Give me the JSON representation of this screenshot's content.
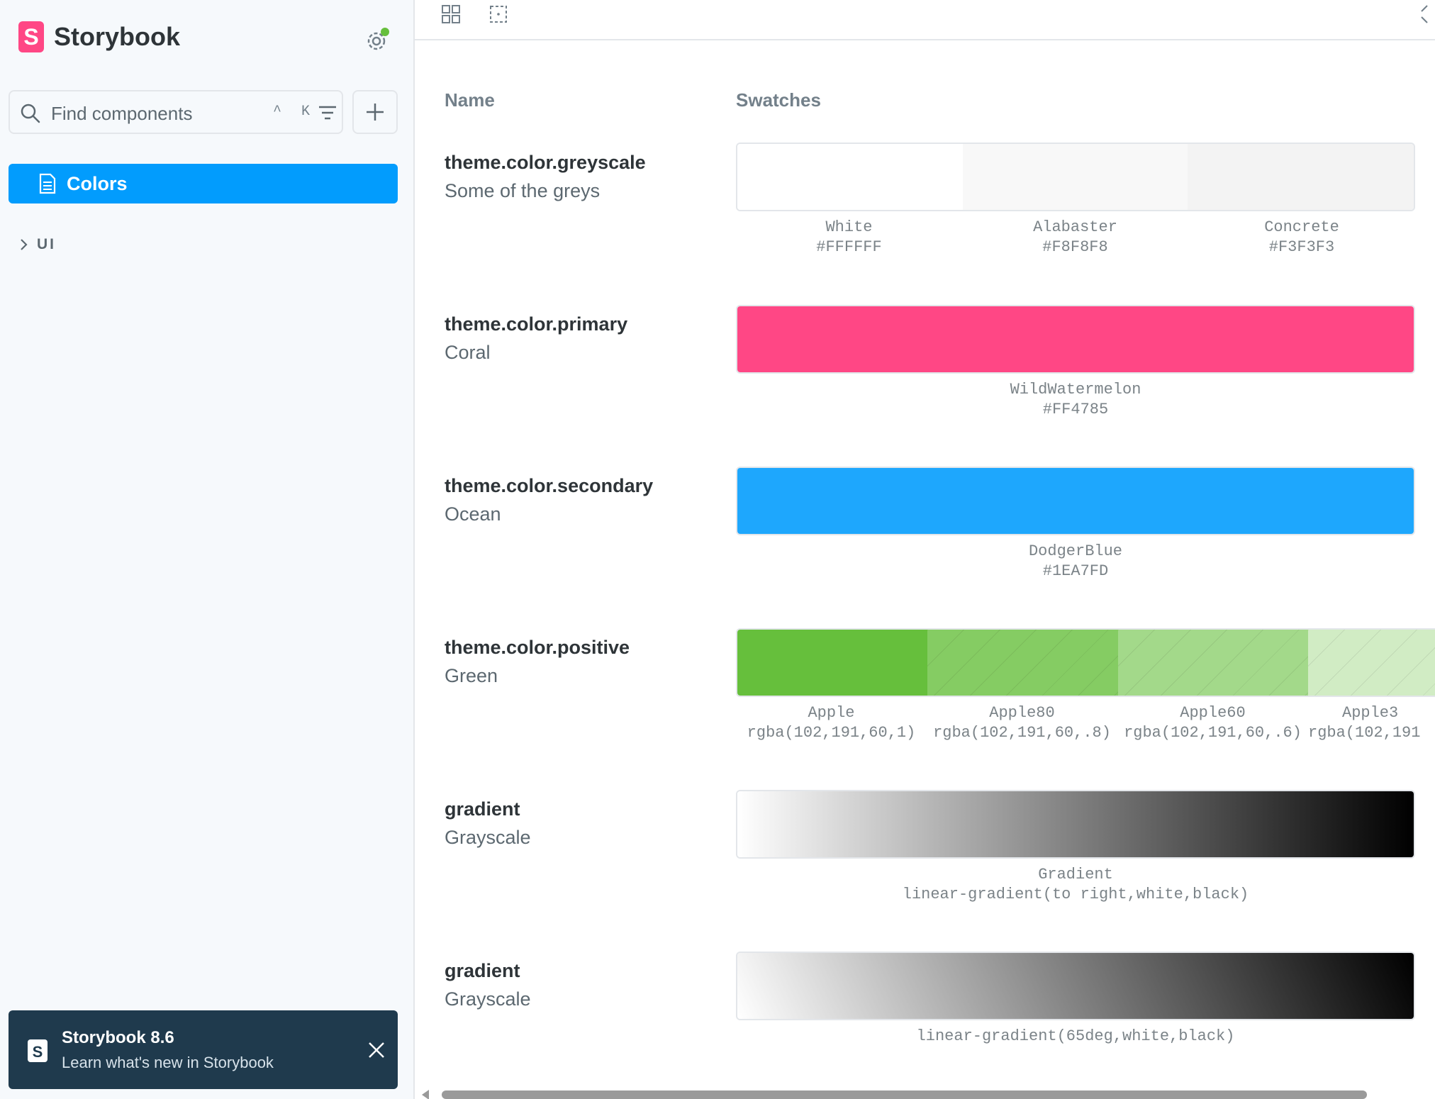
{
  "sidebar": {
    "brand_title": "Storybook",
    "search_placeholder": "Find components",
    "shortcut": "^ K",
    "selected_item": "Colors",
    "group_label": "UI",
    "notification": {
      "title": "Storybook 8.6",
      "subtitle": "Learn what's new in Storybook"
    }
  },
  "main": {
    "headers": {
      "name": "Name",
      "swatches": "Swatches"
    },
    "rows": [
      {
        "name": "theme.color.greyscale",
        "desc": "Some of the greys",
        "swatches": [
          {
            "label": "White",
            "value": "#FFFFFF",
            "color": "#FFFFFF"
          },
          {
            "label": "Alabaster",
            "value": "#F8F8F8",
            "color": "#F8F8F8"
          },
          {
            "label": "Concrete",
            "value": "#F3F3F3",
            "color": "#F3F3F3"
          }
        ]
      },
      {
        "name": "theme.color.primary",
        "desc": "Coral",
        "swatches": [
          {
            "label": "WildWatermelon",
            "value": "#FF4785",
            "color": "#FF4785"
          }
        ]
      },
      {
        "name": "theme.color.secondary",
        "desc": "Ocean",
        "swatches": [
          {
            "label": "DodgerBlue",
            "value": "#1EA7FD",
            "color": "#1EA7FD"
          }
        ]
      },
      {
        "name": "theme.color.positive",
        "desc": "Green",
        "swatches": [
          {
            "label": "Apple",
            "value": "rgba(102,191,60,1)",
            "color": "rgba(102,191,60,1)"
          },
          {
            "label": "Apple80",
            "value": "rgba(102,191,60,.8)",
            "color": "rgba(102,191,60,.8)"
          },
          {
            "label": "Apple60",
            "value": "rgba(102,191,60,.6)",
            "color": "rgba(102,191,60,.6)"
          },
          {
            "label": "Apple3",
            "value": "rgba(102,191",
            "color": "rgba(102,191,60,.3)"
          }
        ]
      },
      {
        "name": "gradient",
        "desc": "Grayscale",
        "swatches": [
          {
            "label": "Gradient",
            "value": "linear-gradient(to right,white,black)",
            "color": "linear-gradient(to right,white,black)"
          }
        ]
      },
      {
        "name": "gradient",
        "desc": "Grayscale",
        "swatches": [
          {
            "label": "",
            "value": "linear-gradient(65deg,white,black)",
            "color": "linear-gradient(65deg,white,black)"
          }
        ]
      }
    ]
  }
}
